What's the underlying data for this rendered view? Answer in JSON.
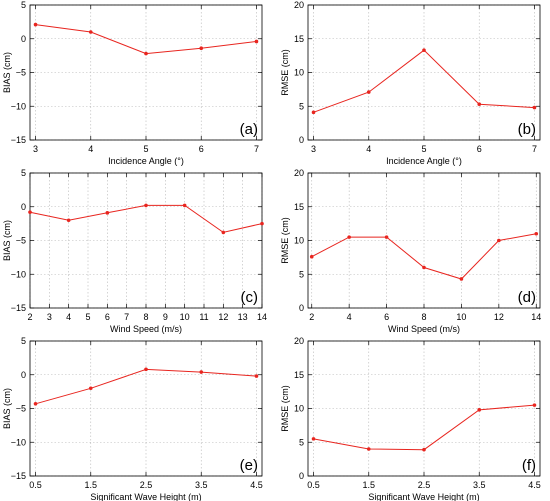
{
  "chart_data": [
    {
      "type": "line",
      "panel": "(a)",
      "xlabel": "Incidence Angle (°)",
      "ylabel": "BIAS (cm)",
      "xlim": [
        2.9,
        7.1
      ],
      "ylim": [
        -15,
        5
      ],
      "xticks": [
        3,
        4,
        5,
        6,
        7
      ],
      "yticks": [
        -15,
        -10,
        -5,
        0,
        5
      ],
      "x": [
        3,
        4,
        5,
        6,
        7
      ],
      "series": [
        {
          "values": [
            2.1,
            1.0,
            -2.2,
            -1.4,
            -0.4
          ]
        }
      ],
      "grid": true,
      "color": "#e8251f"
    },
    {
      "type": "line",
      "panel": "(b)",
      "xlabel": "Incidence Angle (°)",
      "ylabel": "RMSE (cm)",
      "xlim": [
        2.9,
        7.1
      ],
      "ylim": [
        0,
        20
      ],
      "xticks": [
        3,
        4,
        5,
        6,
        7
      ],
      "yticks": [
        0,
        5,
        10,
        15,
        20
      ],
      "x": [
        3,
        4,
        5,
        6,
        7
      ],
      "series": [
        {
          "values": [
            4.1,
            7.1,
            13.3,
            5.3,
            4.8
          ]
        }
      ],
      "grid": true,
      "color": "#e8251f"
    },
    {
      "type": "line",
      "panel": "(c)",
      "xlabel": "Wind Speed (m/s)",
      "ylabel": "BIAS (cm)",
      "xlim": [
        2,
        14
      ],
      "ylim": [
        -15,
        5
      ],
      "xticks": [
        2,
        3,
        4,
        5,
        6,
        7,
        8,
        9,
        10,
        11,
        12,
        13,
        14
      ],
      "yticks": [
        -15,
        -10,
        -5,
        0,
        5
      ],
      "x": [
        2,
        4,
        6,
        8,
        10,
        12,
        14
      ],
      "series": [
        {
          "values": [
            -0.8,
            -2.0,
            -0.9,
            0.2,
            0.2,
            -3.8,
            -2.5
          ]
        }
      ],
      "grid": true,
      "color": "#e8251f"
    },
    {
      "type": "line",
      "panel": "(d)",
      "xlabel": "Wind Speed (m/s)",
      "ylabel": "RMSE (cm)",
      "xlim": [
        1.8,
        14.2
      ],
      "ylim": [
        0,
        20
      ],
      "xticks": [
        2,
        4,
        6,
        8,
        10,
        12,
        14
      ],
      "yticks": [
        0,
        5,
        10,
        15,
        20
      ],
      "x": [
        2,
        4,
        6,
        8,
        10,
        12,
        14
      ],
      "series": [
        {
          "values": [
            7.6,
            10.5,
            10.5,
            6.0,
            4.3,
            10.0,
            11.0
          ]
        }
      ],
      "grid": true,
      "color": "#e8251f"
    },
    {
      "type": "line",
      "panel": "(e)",
      "xlabel": "Significant Wave Height (m)",
      "ylabel": "BIAS (cm)",
      "xlim": [
        0.4,
        4.6
      ],
      "ylim": [
        -15,
        5
      ],
      "xticks": [
        0.5,
        1.5,
        2.5,
        3.5,
        4.5
      ],
      "yticks": [
        -15,
        -10,
        -5,
        0,
        5
      ],
      "x": [
        0.5,
        1.5,
        2.5,
        3.5,
        4.5
      ],
      "series": [
        {
          "values": [
            -4.3,
            -2.0,
            0.8,
            0.4,
            -0.2
          ]
        }
      ],
      "grid": true,
      "color": "#e8251f"
    },
    {
      "type": "line",
      "panel": "(f)",
      "xlabel": "Significant Wave Height (m)",
      "ylabel": "RMSE (cm)",
      "xlim": [
        0.4,
        4.6
      ],
      "ylim": [
        0,
        20
      ],
      "xticks": [
        0.5,
        1.5,
        2.5,
        3.5,
        4.5
      ],
      "yticks": [
        0,
        5,
        10,
        15,
        20
      ],
      "x": [
        0.5,
        1.5,
        2.5,
        3.5,
        4.5
      ],
      "series": [
        {
          "values": [
            5.5,
            4.0,
            3.9,
            9.8,
            10.5
          ]
        }
      ],
      "grid": true,
      "color": "#e8251f"
    }
  ]
}
